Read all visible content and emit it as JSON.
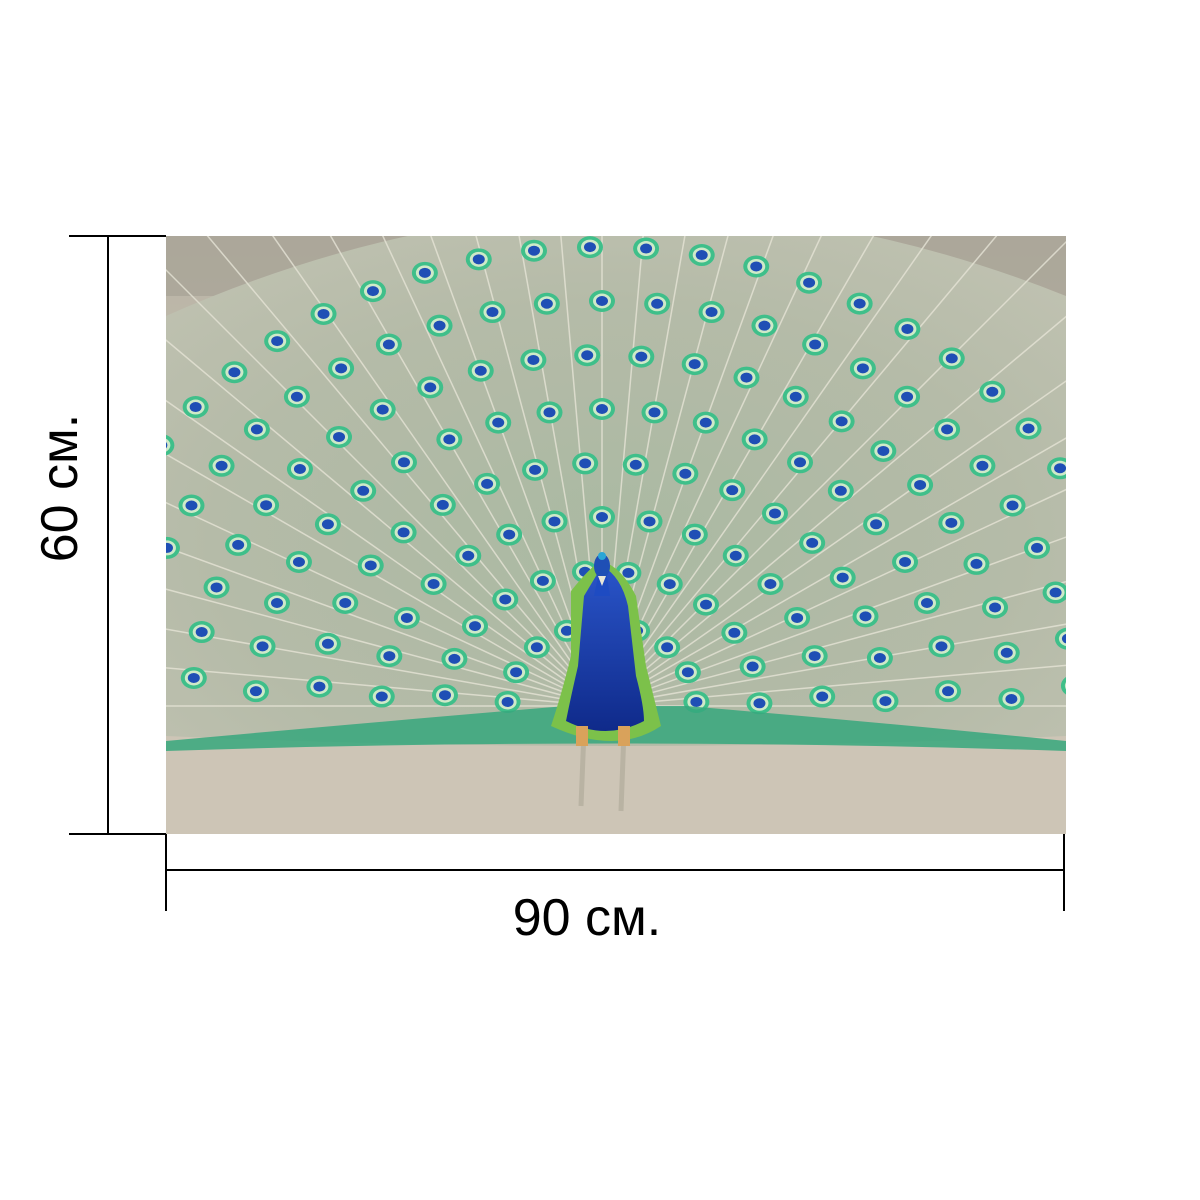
{
  "product": {
    "height_label": "60 см.",
    "width_label": "90 см."
  },
  "colors": {
    "dimension_line": "#000000",
    "background": "#ffffff",
    "peacock_body": "#1a3db0",
    "peacock_neck_green": "#7cc14a",
    "feather_eye_outer": "#3fbf8a",
    "feather_eye_inner": "#1f4fb5",
    "ground": "#cbc3b5"
  }
}
